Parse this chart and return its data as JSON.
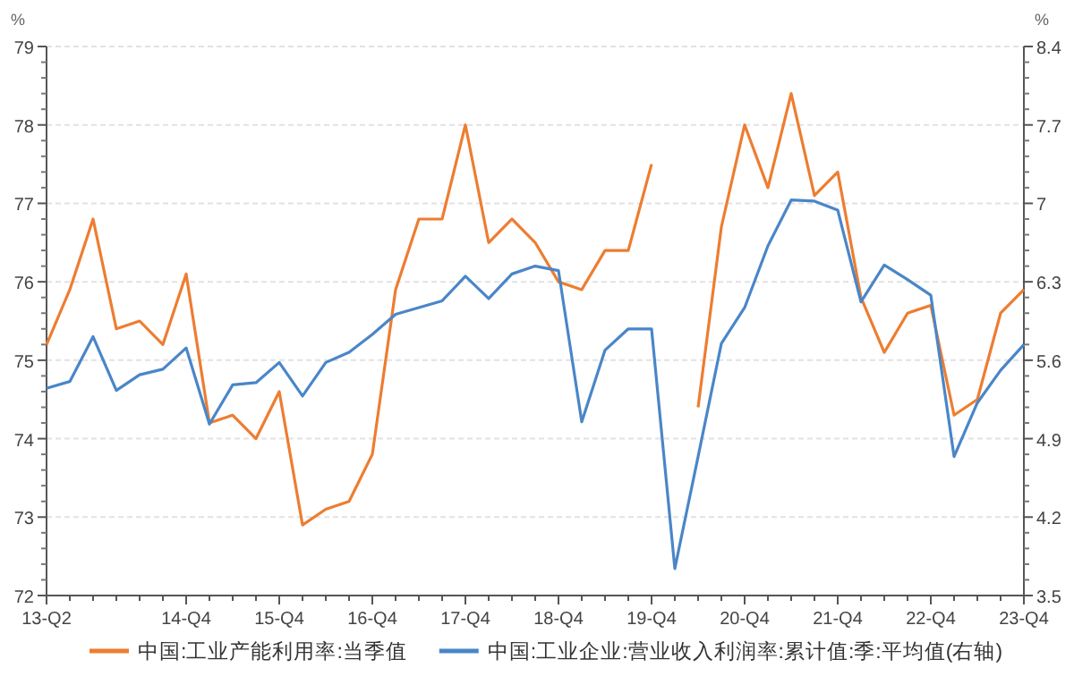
{
  "chart_data": {
    "type": "line",
    "ylabel": "%",
    "y2label": "%",
    "categories": [
      "13-Q2",
      null,
      null,
      null,
      null,
      null,
      "14-Q4",
      null,
      null,
      null,
      "15-Q4",
      null,
      null,
      null,
      "16-Q4",
      null,
      null,
      null,
      "17-Q4",
      null,
      null,
      null,
      "18-Q4",
      null,
      null,
      null,
      "19-Q4",
      null,
      null,
      null,
      "20-Q4",
      null,
      null,
      null,
      "21-Q4",
      null,
      null,
      null,
      "22-Q4",
      null,
      null,
      null,
      "23-Q4"
    ],
    "series": [
      {
        "name": "中国:工业产能利用率:当季值",
        "color": "#ed7d31",
        "values": [
          75.2,
          75.9,
          76.8,
          75.4,
          75.5,
          75.2,
          76.1,
          74.2,
          74.3,
          74.0,
          74.6,
          72.9,
          73.1,
          73.2,
          73.8,
          75.9,
          76.8,
          76.8,
          78.0,
          76.5,
          76.8,
          76.5,
          76.0,
          75.9,
          76.4,
          76.4,
          77.5,
          null,
          74.4,
          76.7,
          78.0,
          77.2,
          78.4,
          77.1,
          77.4,
          75.8,
          75.1,
          75.6,
          75.7,
          74.3,
          74.5,
          75.6,
          75.9
        ]
      },
      {
        "name": "中国:工业企业:营业收入利润率:累计值:季:平均值(右轴)",
        "color": "#4a86c8",
        "axis": "y2",
        "values": [
          5.35,
          5.41,
          5.81,
          5.33,
          5.47,
          5.52,
          5.71,
          5.03,
          5.38,
          5.4,
          5.58,
          5.28,
          5.58,
          5.67,
          5.83,
          6.01,
          6.07,
          6.13,
          6.35,
          6.15,
          6.37,
          6.44,
          6.4,
          5.05,
          5.69,
          5.88,
          5.88,
          3.74,
          4.74,
          5.75,
          6.07,
          6.62,
          7.03,
          7.02,
          6.94,
          6.12,
          6.45,
          6.32,
          6.18,
          4.74,
          5.22,
          5.51,
          5.74
        ]
      }
    ],
    "ylim": [
      72,
      79
    ],
    "yticks": [
      72,
      73,
      74,
      75,
      76,
      77,
      78,
      79
    ],
    "y2lim": [
      3.5,
      8.4
    ],
    "y2ticks": [
      3.5,
      4.2,
      4.9,
      5.6,
      6.3,
      7,
      7.7,
      8.4
    ],
    "grid": "y",
    "legend": "bottom",
    "line_style": "solid",
    "marker": "none"
  }
}
